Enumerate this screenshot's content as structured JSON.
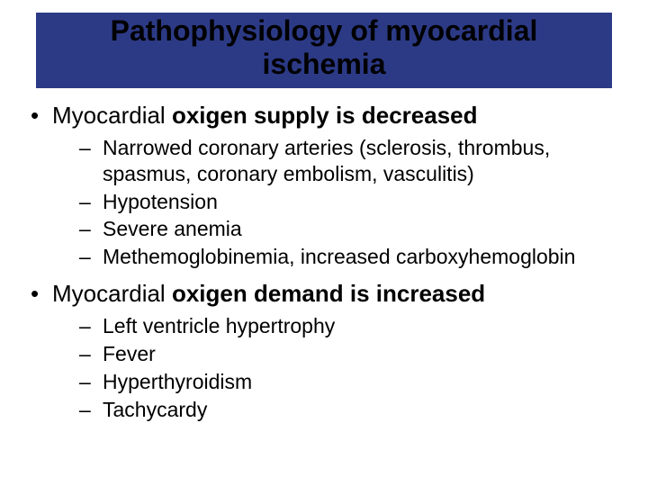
{
  "colors": {
    "title_bg": "#2c3a86",
    "title_text": "#000000",
    "body_text": "#000000",
    "slide_bg": "#ffffff"
  },
  "typography": {
    "font_family": "Arial",
    "title_fontsize_pt": 32,
    "title_fontweight": "bold",
    "level1_fontsize_pt": 26,
    "level2_fontsize_pt": 23
  },
  "title": {
    "line1": "Pathophysiology of myocardial",
    "line2": "ischemia"
  },
  "bullets": [
    {
      "prefix": "Myocardial ",
      "bold_part": "oxigen supply is decreased",
      "sub": [
        "Narrowed coronary arteries (sclerosis, thrombus, spasmus, coronary embolism, vasculitis)",
        "Hypotension",
        "Severe anemia",
        "Methemoglobinemia, increased carboxyhemoglobin"
      ]
    },
    {
      "prefix": "Myocardial ",
      "bold_part": "oxigen demand is increased",
      "sub": [
        "Left ventricle hypertrophy",
        "Fever",
        "Hyperthyroidism",
        "Tachycardy"
      ]
    }
  ]
}
